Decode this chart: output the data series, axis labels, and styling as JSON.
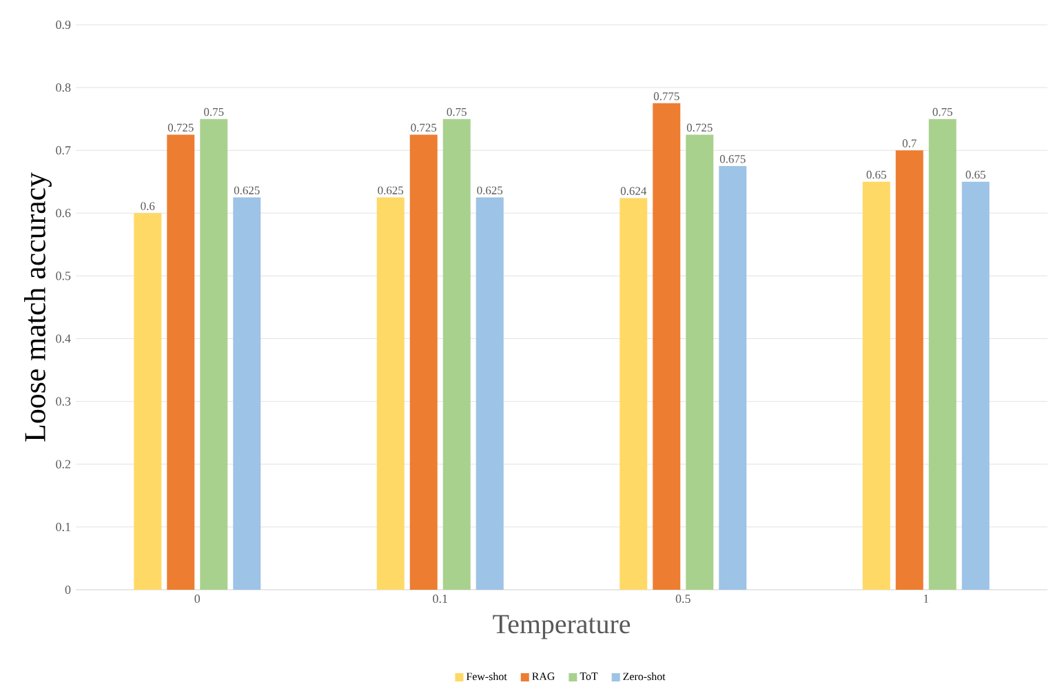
{
  "chart_data": {
    "type": "bar",
    "xlabel": "Temperature",
    "ylabel": "Loose match accuracy",
    "categories": [
      "0",
      "0.1",
      "0.5",
      "1"
    ],
    "series": [
      {
        "name": "Few-shot",
        "color": "#ffd966",
        "values": [
          0.6,
          0.625,
          0.624,
          0.65
        ]
      },
      {
        "name": "RAG",
        "color": "#ed7d31",
        "values": [
          0.725,
          0.725,
          0.775,
          0.7
        ]
      },
      {
        "name": "ToT",
        "color": "#a9d18e",
        "values": [
          0.75,
          0.75,
          0.725,
          0.75
        ]
      },
      {
        "name": "Zero-shot",
        "color": "#9dc3e6",
        "values": [
          0.625,
          0.625,
          0.675,
          0.65
        ]
      }
    ],
    "ylim": [
      0,
      0.9
    ],
    "yticks": [
      0,
      0.1,
      0.2,
      0.3,
      0.4,
      0.5,
      0.6,
      0.7,
      0.8,
      0.9
    ],
    "grid": "y",
    "legend": "bottom",
    "data_labels": true
  }
}
